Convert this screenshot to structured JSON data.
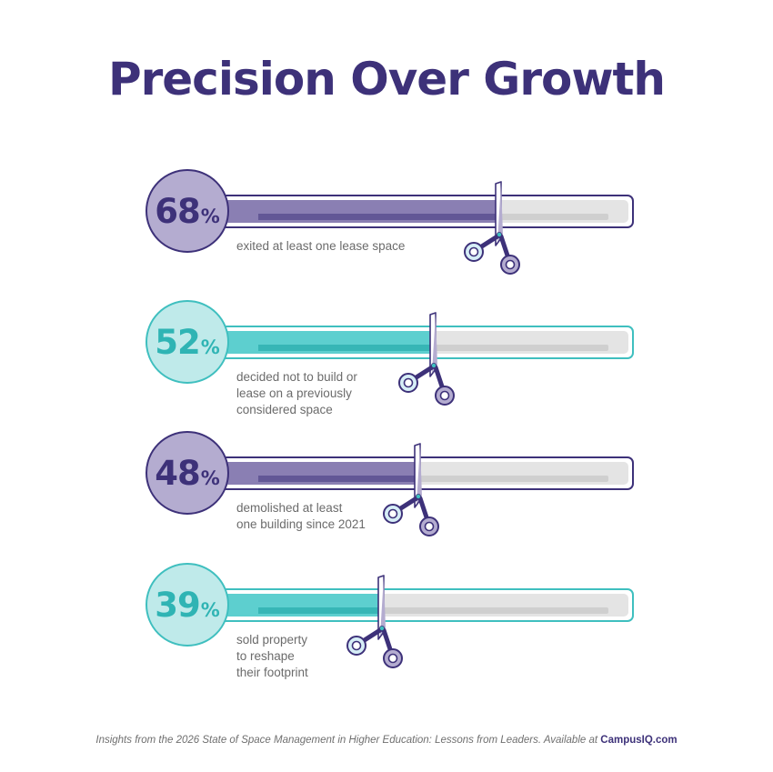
{
  "title": "Precision Over Growth",
  "chart_data": {
    "type": "bar",
    "orientation": "horizontal",
    "title": "Precision Over Growth",
    "categories": [
      "exited at least one lease space",
      "decided not to build or lease on a previously considered space",
      "demolished at least one building since 2021",
      "sold property to reshape their footprint"
    ],
    "values": [
      68,
      52,
      48,
      39
    ],
    "ylim": [
      0,
      100
    ],
    "grid": false,
    "legend": "none"
  },
  "stats": [
    {
      "value": "68",
      "unit": "%",
      "lines": [
        "exited at least one lease space"
      ],
      "theme": "purple"
    },
    {
      "value": "52",
      "unit": "%",
      "lines": [
        "decided not to build or",
        "lease on a previously",
        "considered space"
      ],
      "theme": "teal"
    },
    {
      "value": "48",
      "unit": "%",
      "lines": [
        "demolished at least",
        "one building since 2021"
      ],
      "theme": "purple"
    },
    {
      "value": "39",
      "unit": "%",
      "lines": [
        "sold property",
        "to reshape",
        "their footprint"
      ],
      "theme": "teal"
    }
  ],
  "footer": {
    "text": "Insights from the 2026 State of Space Management in Higher Education: Lessons from Leaders. Available at",
    "brand": "CampusIQ.com"
  },
  "colors": {
    "title": "#3d3179",
    "purple": "#3d3179",
    "purple_fill": "#8a7fb3",
    "teal": "#2fb4b4",
    "teal_fill": "#5dcfcf",
    "track": "#e4e4e4"
  },
  "icons": [
    "scissors-icon"
  ]
}
